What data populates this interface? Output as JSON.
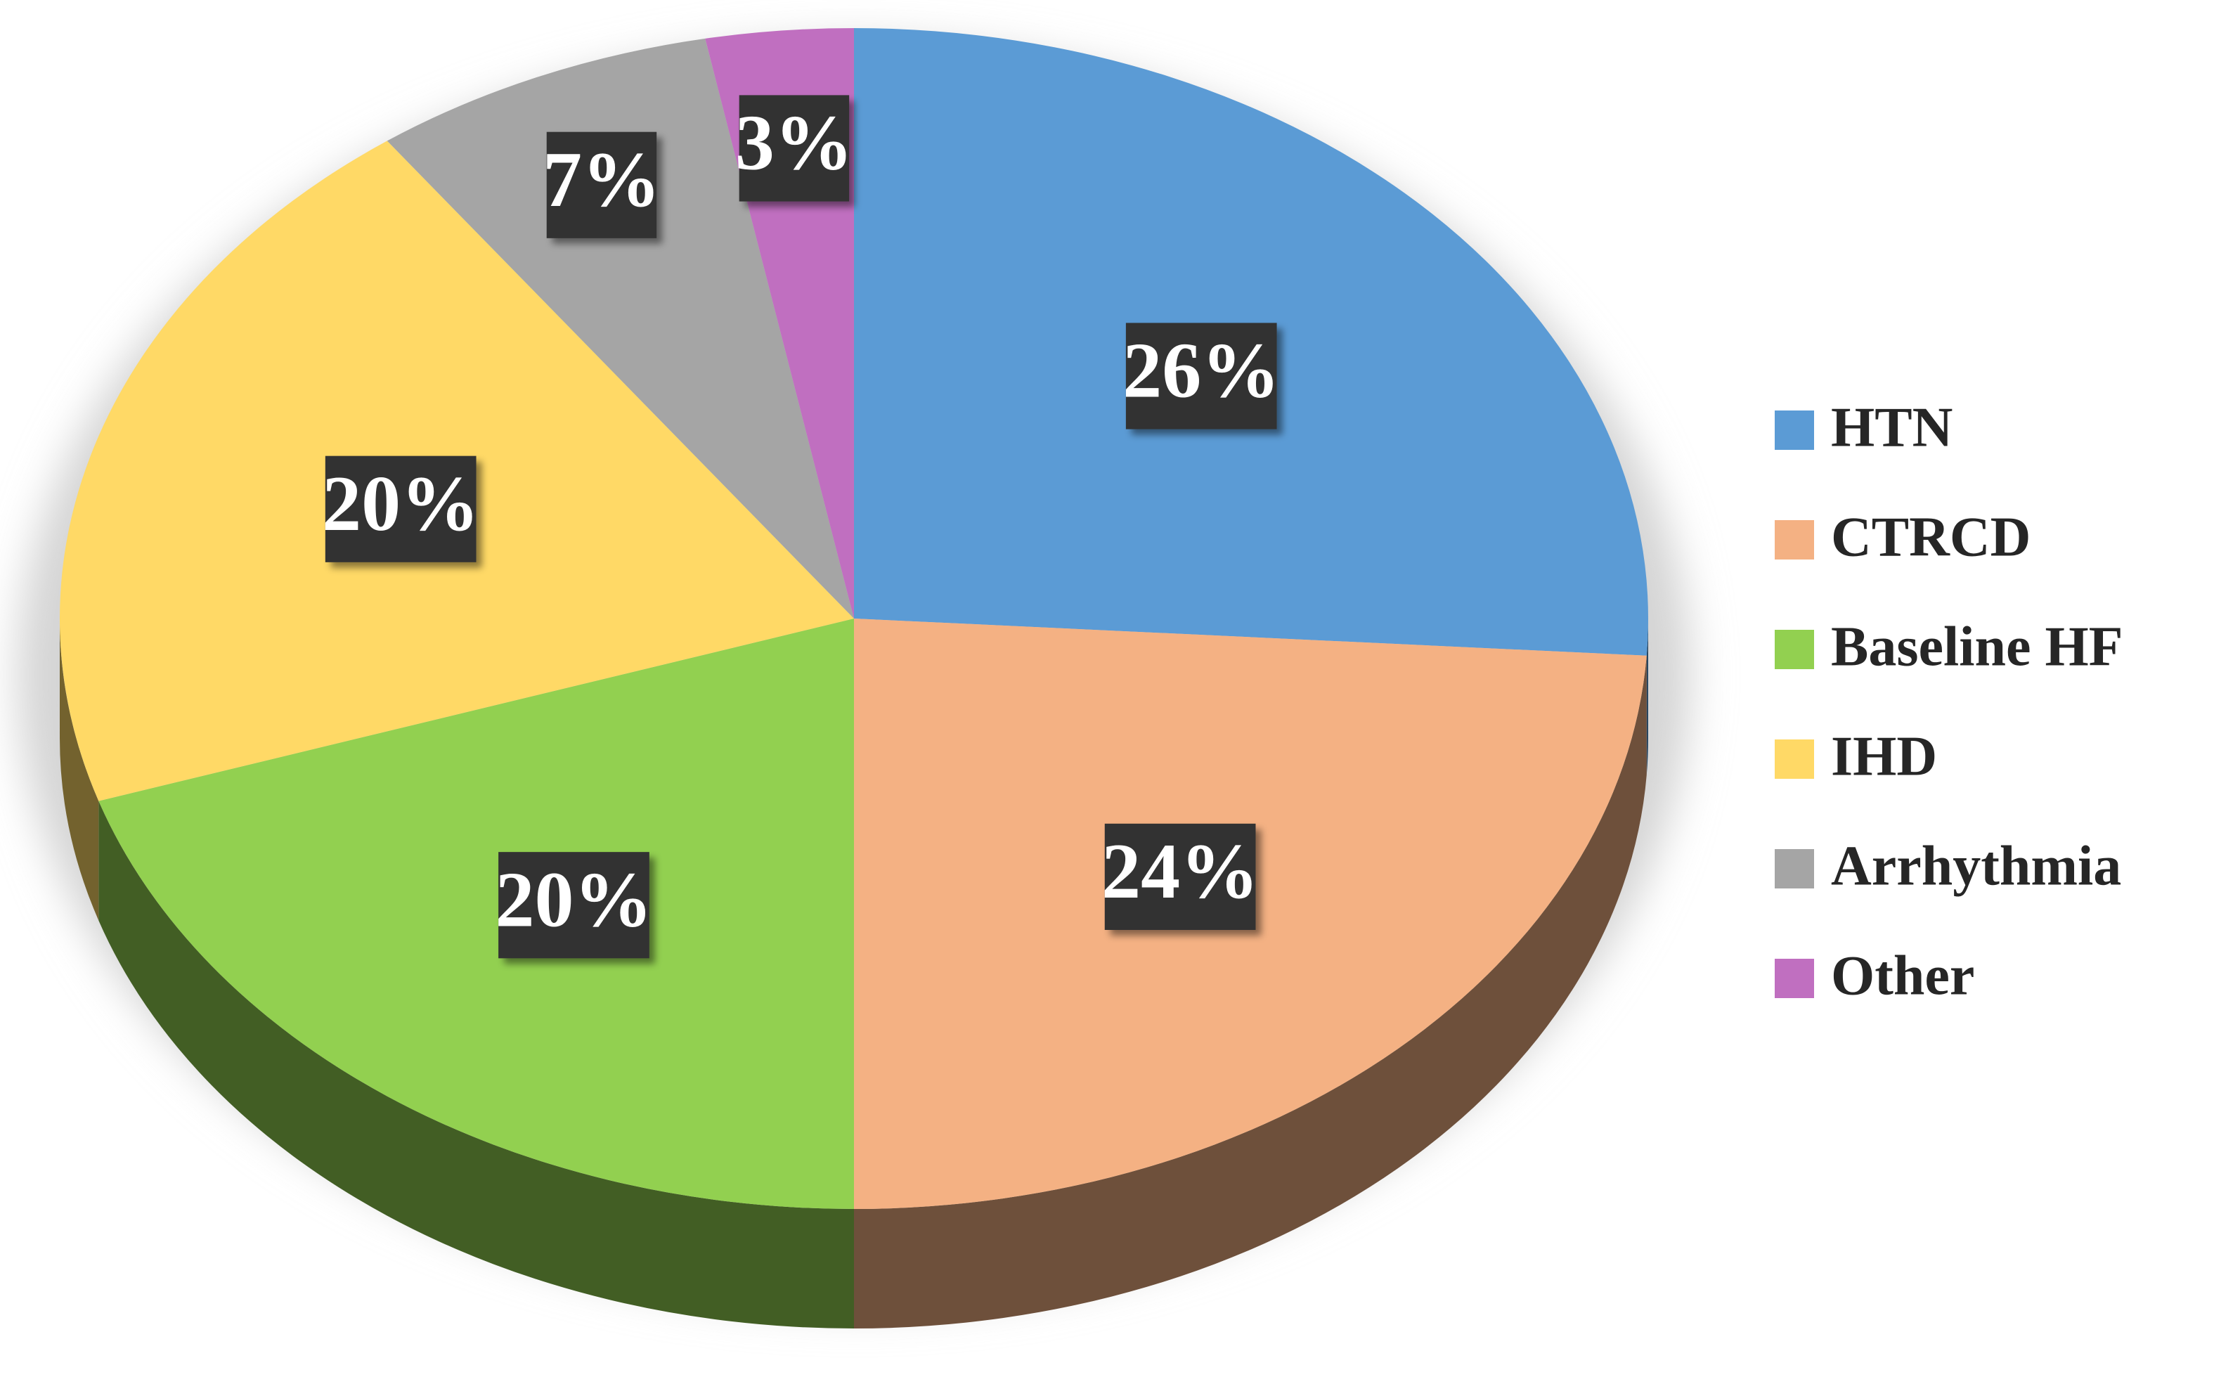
{
  "chart_data": {
    "type": "pie",
    "categories": [
      "HTN",
      "CTRCD",
      "Baseline HF",
      "IHD",
      "Arrhythmia",
      "Other"
    ],
    "values": [
      26,
      24,
      20,
      20,
      7,
      3
    ],
    "value_labels": [
      "26%",
      "24%",
      "20%",
      "20%",
      "7%",
      "3%"
    ],
    "colors": [
      "#5b9bd5",
      "#f4b183",
      "#92d050",
      "#ffd966",
      "#a5a5a5",
      "#c06fc0"
    ],
    "legend": "right"
  }
}
